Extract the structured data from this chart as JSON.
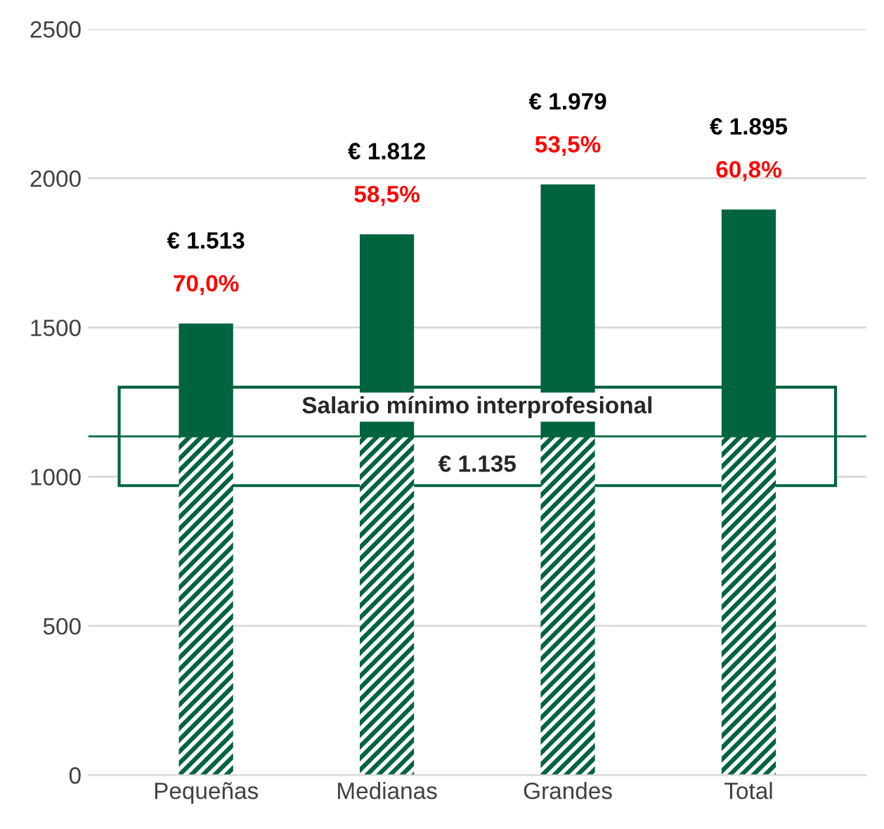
{
  "chart_data": {
    "type": "bar",
    "stacked": true,
    "categories": [
      "Pequeñas",
      "Medianas",
      "Grandes",
      "Total"
    ],
    "series": [
      {
        "color": "#00643f",
        "values": [
          1135,
          1135,
          1135,
          1135
        ]
      },
      {
        "color": "#00643f",
        "values": [
          378,
          677,
          844,
          760
        ]
      }
    ],
    "totals": [
      "€ 1.513",
      "€ 1.812",
      "€ 1.979",
      "€ 1.895"
    ],
    "annotations": [
      {
        "text": "70,0%",
        "x": "Pequeñas",
        "y": 1513
      },
      {
        "text": "58,5%",
        "x": "Medianas",
        "y": 1812
      },
      {
        "text": "53,5%",
        "x": "Grandes",
        "y": 1979
      },
      {
        "text": "60,8%",
        "x": "Total",
        "y": 1895
      }
    ],
    "ref_lines": [
      {
        "axis": "y",
        "value": 1135,
        "label": "Salario mínimo interprofesional\n€ 1.135",
        "color": "#00643f"
      }
    ],
    "ylim": [
      0,
      2500
    ],
    "yticks": [
      0,
      500,
      1000,
      1500,
      2000,
      2500
    ],
    "grid": "y"
  }
}
